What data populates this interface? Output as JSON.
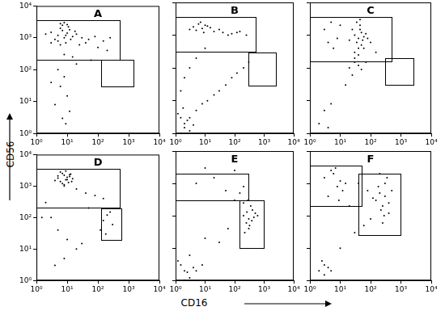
{
  "x_label": "CD16",
  "y_label": "CD56",
  "chart_data": [
    {
      "type": "scatter",
      "title": "A",
      "log": true,
      "grid": false,
      "color": "#000000",
      "marker": "dot",
      "xlim": [
        1,
        10000
      ],
      "ylim": [
        1,
        10000
      ],
      "xticks": [
        {
          "value": 1,
          "label": "10⁰"
        },
        {
          "value": 10,
          "label": "10¹"
        },
        {
          "value": 100,
          "label": "10²"
        },
        {
          "value": 1000,
          "label": "10³"
        },
        {
          "value": 10000,
          "label": "10⁴"
        }
      ],
      "yticks": [
        {
          "value": 1,
          "label": "10⁰"
        },
        {
          "value": 10,
          "label": "10¹"
        },
        {
          "value": 100,
          "label": "10²"
        },
        {
          "value": 1000,
          "label": "10³"
        },
        {
          "value": 10000,
          "label": "10⁴"
        }
      ],
      "gates": [
        {
          "x": [
            1,
            500
          ],
          "y": [
            200,
            3500
          ]
        },
        {
          "x": [
            130,
            1500
          ],
          "y": [
            30,
            200
          ]
        }
      ],
      "x": [
        3,
        5,
        6,
        8,
        10,
        12,
        4,
        7,
        9,
        15,
        20,
        6,
        8,
        11,
        5,
        30,
        50,
        80,
        150,
        250,
        2,
        3,
        13,
        18,
        25,
        7,
        9,
        40,
        10,
        6,
        5,
        8,
        6,
        10,
        4,
        7,
        9,
        12,
        3,
        20,
        100,
        200,
        8,
        15,
        60
      ],
      "values": [
        1500,
        1200,
        2000,
        1000,
        1400,
        1800,
        900,
        2500,
        700,
        1100,
        1300,
        600,
        3000,
        2200,
        800,
        1000,
        900,
        1100,
        800,
        1000,
        1300,
        700,
        900,
        1600,
        600,
        1700,
        1200,
        700,
        2600,
        2800,
        100,
        60,
        30,
        15,
        8,
        3,
        2,
        5,
        40,
        150,
        500,
        400,
        300,
        250,
        200
      ]
    },
    {
      "type": "scatter",
      "title": "B",
      "log": true,
      "grid": false,
      "color": "#000000",
      "marker": "dot",
      "tick_labels": "x",
      "xlim": [
        1,
        10000
      ],
      "ylim": [
        1,
        10000
      ],
      "xticks": [
        {
          "value": 1,
          "label": "10⁰"
        },
        {
          "value": 10,
          "label": "10¹"
        },
        {
          "value": 100,
          "label": "10²"
        },
        {
          "value": 1000,
          "label": "10³"
        },
        {
          "value": 10000,
          "label": "10⁴"
        }
      ],
      "yticks": [
        1,
        10,
        100,
        1000,
        10000
      ],
      "gates": [
        {
          "x": [
            1,
            500
          ],
          "y": [
            300,
            3500
          ]
        },
        {
          "x": [
            300,
            2500
          ],
          "y": [
            30,
            300
          ]
        }
      ],
      "x": [
        4,
        6,
        8,
        10,
        5,
        7,
        12,
        9,
        15,
        3,
        20,
        40,
        80,
        150,
        250,
        30,
        60,
        120,
        1,
        2,
        1.5,
        3,
        2,
        1.2,
        2.5,
        4,
        1.8,
        3,
        5,
        8,
        12,
        20,
        30,
        50,
        80,
        120,
        200,
        300,
        2,
        5,
        10,
        1.5,
        3
      ],
      "values": [
        1800,
        2200,
        1600,
        2000,
        1400,
        2500,
        1900,
        1200,
        1700,
        1500,
        1300,
        1200,
        1100,
        1300,
        1000,
        1500,
        1000,
        1200,
        1.5,
        2,
        3,
        1.2,
        1.5,
        4,
        2.5,
        1.8,
        6,
        3,
        5,
        8,
        10,
        15,
        20,
        30,
        50,
        70,
        100,
        150,
        50,
        200,
        400,
        20,
        100
      ]
    },
    {
      "type": "scatter",
      "title": "C",
      "log": true,
      "grid": false,
      "color": "#000000",
      "marker": "dot",
      "tick_labels": "x",
      "xlim": [
        1,
        10000
      ],
      "ylim": [
        1,
        10000
      ],
      "xticks": [
        {
          "value": 1,
          "label": "10⁰"
        },
        {
          "value": 10,
          "label": "10¹"
        },
        {
          "value": 100,
          "label": "10²"
        },
        {
          "value": 1000,
          "label": "10³"
        },
        {
          "value": 10000,
          "label": "10⁴"
        }
      ],
      "yticks": [
        1,
        10,
        100,
        1000,
        10000
      ],
      "gates": [
        {
          "x": [
            1,
            500
          ],
          "y": [
            150,
            3500
          ]
        },
        {
          "x": [
            300,
            2500
          ],
          "y": [
            30,
            200
          ]
        }
      ],
      "x": [
        30,
        40,
        50,
        35,
        45,
        60,
        25,
        40,
        55,
        70,
        30,
        45,
        50,
        35,
        80,
        40,
        60,
        20,
        30,
        45,
        3,
        5,
        8,
        4,
        10,
        6,
        20,
        25,
        15,
        30,
        2,
        3,
        4,
        5,
        100,
        150,
        70,
        40,
        50
      ],
      "values": [
        1000,
        800,
        1200,
        600,
        2000,
        900,
        1500,
        400,
        700,
        1100,
        300,
        1500,
        500,
        2500,
        800,
        250,
        400,
        700,
        200,
        3000,
        1500,
        2500,
        800,
        600,
        2000,
        400,
        100,
        60,
        30,
        150,
        2,
        5,
        1.5,
        8,
        600,
        300,
        150,
        120,
        90
      ]
    },
    {
      "type": "scatter",
      "title": "D",
      "log": true,
      "grid": false,
      "color": "#000000",
      "marker": "dot",
      "xlim": [
        1,
        10000
      ],
      "ylim": [
        1,
        10000
      ],
      "xticks": [
        {
          "value": 1,
          "label": "10⁰"
        },
        {
          "value": 10,
          "label": "10¹"
        },
        {
          "value": 100,
          "label": "10²"
        },
        {
          "value": 1000,
          "label": "10³"
        },
        {
          "value": 10000,
          "label": "10⁴"
        }
      ],
      "yticks": [
        {
          "value": 1,
          "label": "10⁰"
        },
        {
          "value": 10,
          "label": "10¹"
        },
        {
          "value": 100,
          "label": "10²"
        },
        {
          "value": 1000,
          "label": "10³"
        },
        {
          "value": 10000,
          "label": "10⁴"
        }
      ],
      "gates": [
        {
          "x": [
            1,
            500
          ],
          "y": [
            200,
            3500
          ]
        },
        {
          "x": [
            130,
            600
          ],
          "y": [
            20,
            200
          ]
        }
      ],
      "x": [
        5,
        8,
        10,
        6,
        7,
        12,
        9,
        15,
        4,
        8,
        11,
        6,
        10,
        13,
        7,
        9,
        5,
        14,
        8,
        12,
        20,
        40,
        80,
        150,
        2,
        3,
        5,
        10,
        20,
        150,
        200,
        300,
        120,
        250,
        180,
        50,
        8,
        4,
        30,
        1.5
      ],
      "values": [
        1800,
        2200,
        1600,
        1400,
        2500,
        2000,
        3000,
        1700,
        1500,
        1100,
        1300,
        2800,
        1900,
        2400,
        1200,
        1600,
        2100,
        1400,
        1000,
        2300,
        800,
        600,
        500,
        400,
        300,
        100,
        40,
        20,
        10,
        80,
        120,
        60,
        40,
        150,
        30,
        200,
        5,
        3,
        15,
        100
      ]
    },
    {
      "type": "scatter",
      "title": "E",
      "log": true,
      "grid": false,
      "color": "#000000",
      "marker": "dot",
      "tick_labels": "x",
      "xlim": [
        1,
        10000
      ],
      "ylim": [
        1,
        10000
      ],
      "xticks": [
        {
          "value": 1,
          "label": "10⁰"
        },
        {
          "value": 10,
          "label": "10¹"
        },
        {
          "value": 100,
          "label": "10²"
        },
        {
          "value": 1000,
          "label": "10³"
        },
        {
          "value": 10000,
          "label": "10⁴"
        }
      ],
      "yticks": [
        1,
        10,
        100,
        1000,
        10000
      ],
      "gates": [
        {
          "x": [
            1,
            300
          ],
          "y": [
            300,
            2000
          ]
        },
        {
          "x": [
            150,
            1000
          ],
          "y": [
            10,
            300
          ]
        }
      ],
      "x": [
        200,
        300,
        400,
        250,
        350,
        500,
        300,
        200,
        450,
        280,
        320,
        380,
        260,
        600,
        220,
        1,
        2,
        3,
        1.5,
        2.5,
        4,
        1.2,
        3,
        2,
        5,
        8,
        10,
        30,
        60,
        100,
        150,
        5,
        20,
        50,
        100,
        200,
        10
      ],
      "values": [
        100,
        80,
        150,
        60,
        200,
        120,
        40,
        250,
        90,
        300,
        50,
        70,
        130,
        100,
        30,
        1.5,
        2,
        1.2,
        3,
        1.8,
        2.5,
        4,
        6,
        1,
        2,
        3,
        20,
        15,
        40,
        300,
        500,
        1000,
        1500,
        600,
        2500,
        800,
        3000
      ]
    },
    {
      "type": "scatter",
      "title": "F",
      "log": true,
      "grid": false,
      "color": "#000000",
      "marker": "dot",
      "tick_labels": "x",
      "xlim": [
        1,
        10000
      ],
      "ylim": [
        1,
        10000
      ],
      "xticks": [
        {
          "value": 1,
          "label": "10⁰"
        },
        {
          "value": 10,
          "label": "10¹"
        },
        {
          "value": 100,
          "label": "10²"
        },
        {
          "value": 1000,
          "label": "10³"
        },
        {
          "value": 10000,
          "label": "10⁴"
        }
      ],
      "yticks": [
        1,
        10,
        100,
        1000,
        10000
      ],
      "gates": [
        {
          "x": [
            1,
            50
          ],
          "y": [
            200,
            3500
          ]
        },
        {
          "x": [
            40,
            1000
          ],
          "y": [
            25,
            2000
          ]
        }
      ],
      "x": [
        3,
        5,
        8,
        10,
        4,
        6,
        12,
        7,
        15,
        9,
        150,
        200,
        250,
        300,
        400,
        180,
        350,
        220,
        280,
        500,
        120,
        300,
        250,
        200,
        400,
        2,
        3,
        4,
        2.5,
        5,
        3,
        10,
        30,
        60,
        100,
        20,
        40,
        80
      ],
      "values": [
        1500,
        2500,
        800,
        1200,
        400,
        2000,
        600,
        3000,
        1000,
        300,
        300,
        500,
        200,
        400,
        250,
        800,
        1500,
        150,
        100,
        600,
        350,
        1000,
        60,
        2000,
        120,
        2,
        3,
        2.5,
        4,
        2,
        1.5,
        10,
        30,
        50,
        80,
        200,
        1000,
        600
      ]
    }
  ]
}
